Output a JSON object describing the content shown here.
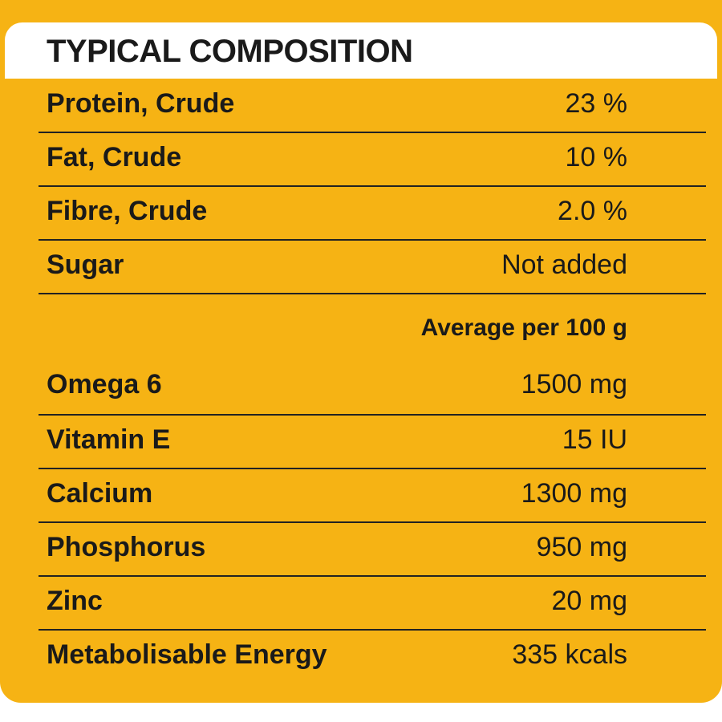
{
  "header": {
    "title": "TYPICAL COMPOSITION"
  },
  "table": {
    "rows": [
      [
        "Protein, Crude",
        "23 %"
      ],
      [
        "Fat, Crude",
        "10 %"
      ],
      [
        "Fibre, Crude",
        "2.0 %"
      ],
      [
        "Sugar",
        "Not added"
      ]
    ],
    "subheader": "Average per 100 g",
    "rows2": [
      [
        "Omega 6",
        "1500 mg"
      ],
      [
        "Vitamin E",
        "15 IU"
      ],
      [
        "Calcium",
        "1300 mg"
      ],
      [
        "Phosphorus",
        "950 mg"
      ],
      [
        "Zinc",
        "20 mg"
      ],
      [
        "Metabolisable Energy",
        "335 kcals"
      ]
    ]
  }
}
